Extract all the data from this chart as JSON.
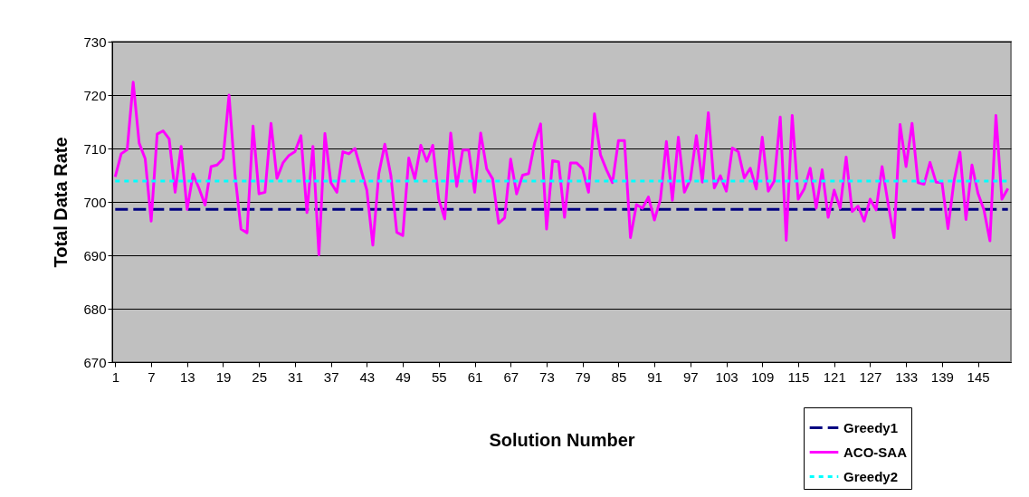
{
  "chart_data": {
    "type": "line",
    "xlabel": "Solution Number",
    "ylabel": "Total Data Rate",
    "xlim": [
      0.5,
      150.5
    ],
    "ylim": [
      670,
      730
    ],
    "xticks": [
      1,
      7,
      13,
      19,
      25,
      31,
      37,
      43,
      49,
      55,
      61,
      67,
      73,
      79,
      85,
      91,
      97,
      103,
      109,
      115,
      121,
      127,
      133,
      139,
      145
    ],
    "yticks": [
      670,
      680,
      690,
      700,
      710,
      720,
      730
    ],
    "grid": "y",
    "legend": "bottom right",
    "series": [
      {
        "name": "Greedy1",
        "color": "#000080",
        "line_style": "dashed",
        "x": [
          1,
          150
        ],
        "values": [
          698.6,
          698.6
        ]
      },
      {
        "name": "ACO-SAA",
        "color": "#ff00ff",
        "line_style": "solid",
        "x": [
          1,
          2,
          3,
          4,
          5,
          6,
          7,
          8,
          9,
          10,
          11,
          12,
          13,
          14,
          15,
          16,
          17,
          18,
          19,
          20,
          21,
          22,
          23,
          24,
          25,
          26,
          27,
          28,
          29,
          30,
          31,
          32,
          33,
          34,
          35,
          36,
          37,
          38,
          39,
          40,
          41,
          42,
          43,
          44,
          45,
          46,
          47,
          48,
          49,
          50,
          51,
          52,
          53,
          54,
          55,
          56,
          57,
          58,
          59,
          60,
          61,
          62,
          63,
          64,
          65,
          66,
          67,
          68,
          69,
          70,
          71,
          72,
          73,
          74,
          75,
          76,
          77,
          78,
          79,
          80,
          81,
          82,
          83,
          84,
          85,
          86,
          87,
          88,
          89,
          90,
          91,
          92,
          93,
          94,
          95,
          96,
          97,
          98,
          99,
          100,
          101,
          102,
          103,
          104,
          105,
          106,
          107,
          108,
          109,
          110,
          111,
          112,
          113,
          114,
          115,
          116,
          117,
          118,
          119,
          120,
          121,
          122,
          123,
          124,
          125,
          126,
          127,
          128,
          129,
          130,
          131,
          132,
          133,
          134,
          135,
          136,
          137,
          138,
          139,
          140,
          141,
          142,
          143,
          144,
          145,
          146,
          147,
          148,
          149,
          150
        ],
        "values": [
          704.7,
          709.0,
          709.8,
          722.4,
          711.0,
          708.1,
          696.4,
          712.7,
          713.3,
          711.8,
          701.8,
          710.4,
          698.6,
          705.2,
          702.5,
          699.4,
          706.6,
          706.9,
          708.1,
          720.0,
          705.0,
          694.9,
          694.2,
          714.2,
          701.5,
          701.8,
          714.7,
          704.4,
          707.3,
          708.7,
          709.4,
          712.4,
          698.0,
          710.4,
          690.1,
          712.8,
          703.6,
          701.8,
          709.4,
          709.0,
          710.0,
          706.1,
          702.2,
          691.9,
          705.3,
          710.8,
          705.0,
          694.3,
          693.7,
          708.2,
          704.3,
          710.6,
          707.6,
          710.6,
          700.5,
          696.8,
          712.9,
          702.9,
          709.7,
          709.7,
          701.8,
          712.9,
          706.2,
          704.3,
          696.0,
          697.0,
          708.0,
          701.5,
          705.0,
          705.3,
          711.0,
          714.6,
          694.9,
          707.7,
          707.5,
          697.1,
          707.3,
          707.3,
          706.2,
          701.8,
          716.5,
          708.8,
          706.0,
          703.6,
          711.5,
          711.5,
          693.3,
          699.5,
          698.8,
          700.9,
          696.6,
          700.5,
          711.3,
          700.3,
          712.1,
          701.8,
          704.2,
          712.4,
          703.7,
          716.7,
          702.6,
          704.9,
          702.0,
          710.1,
          709.4,
          704.5,
          706.3,
          702.4,
          712.1,
          702.0,
          703.9,
          715.9,
          692.8,
          716.2,
          700.5,
          702.4,
          706.3,
          698.8,
          706.0,
          697.1,
          702.2,
          698.8,
          708.4,
          698.2,
          699.2,
          696.4,
          700.5,
          698.5,
          706.6,
          699.7,
          693.3,
          714.5,
          706.6,
          714.7,
          703.6,
          703.3,
          707.4,
          703.7,
          703.6,
          695.0,
          703.9,
          709.3,
          696.7,
          706.9,
          701.6,
          698.5,
          692.7,
          716.2,
          700.5,
          702.5
        ]
      },
      {
        "name": "Greedy2",
        "color": "#00ffff",
        "line_style": "dotted",
        "x": [
          1,
          150
        ],
        "values": [
          703.9,
          703.9
        ]
      }
    ]
  }
}
